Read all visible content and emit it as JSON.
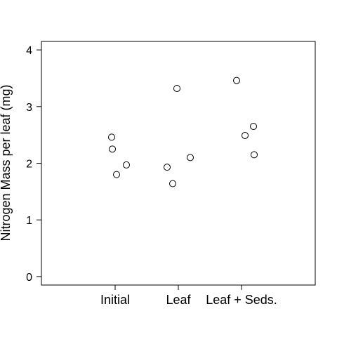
{
  "chart_data": {
    "type": "scatter",
    "title": "",
    "xlabel": "",
    "ylabel": "Nitrogen Mass per leaf (mg)",
    "categories": [
      "Initial",
      "Leaf",
      "Leaf + Seds."
    ],
    "ylim": [
      -0.15,
      4.15
    ],
    "yticks": [
      0,
      1,
      2,
      3,
      4
    ],
    "grid": false,
    "legend": "none",
    "series": [
      {
        "points": [
          {
            "category": "Initial",
            "y": 2.46
          },
          {
            "category": "Initial",
            "y": 2.25
          },
          {
            "category": "Initial",
            "y": 1.8
          },
          {
            "category": "Initial",
            "y": 1.97
          },
          {
            "category": "Leaf",
            "y": 1.93
          },
          {
            "category": "Leaf",
            "y": 1.64
          },
          {
            "category": "Leaf",
            "y": 3.32
          },
          {
            "category": "Leaf",
            "y": 2.1
          },
          {
            "category": "Leaf + Seds.",
            "y": 3.46
          },
          {
            "category": "Leaf + Seds.",
            "y": 2.49
          },
          {
            "category": "Leaf + Seds.",
            "y": 2.65
          },
          {
            "category": "Leaf + Seds.",
            "y": 2.15
          }
        ]
      }
    ]
  }
}
